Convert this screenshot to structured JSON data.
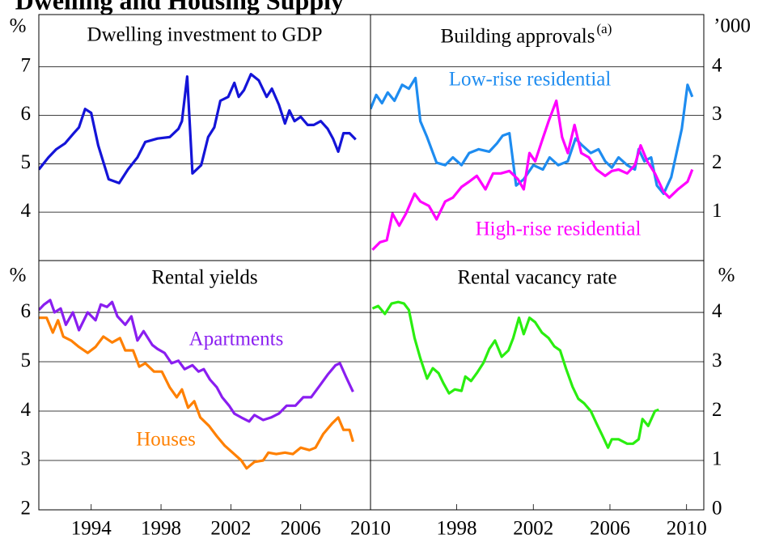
{
  "title": "Dwelling and Housing Supply",
  "chart_data": [
    {
      "type": "line",
      "title": "Dwelling investment to GDP",
      "y_label": "%",
      "xlim": [
        1991,
        2010
      ],
      "ylim": [
        3,
        8.08
      ],
      "yticks": [
        4,
        5,
        6,
        7
      ],
      "grid": true,
      "series": [
        {
          "name": null,
          "color": "#1414d8",
          "x": [
            1991,
            1991.55,
            1992,
            1992.5,
            1993,
            1993.3,
            1993.65,
            1994,
            1994.4,
            1995,
            1995.6,
            1996.1,
            1996.65,
            1997.1,
            1997.8,
            1998.5,
            1999,
            1999.2,
            1999.5,
            1999.8,
            2000.3,
            2000.7,
            2001.05,
            2001.4,
            2001.85,
            2002.2,
            2002.45,
            2002.75,
            2003.15,
            2003.6,
            2004.05,
            2004.35,
            2004.75,
            2005.1,
            2005.35,
            2005.65,
            2006,
            2006.4,
            2006.75,
            2007.15,
            2007.55,
            2007.85,
            2008.15,
            2008.45,
            2008.8,
            2009.15
          ],
          "values": [
            4.88,
            5.13,
            5.3,
            5.42,
            5.63,
            5.75,
            6.13,
            6.05,
            5.38,
            4.68,
            4.6,
            4.88,
            5.13,
            5.45,
            5.52,
            5.55,
            5.72,
            5.88,
            6.8,
            4.8,
            4.97,
            5.55,
            5.75,
            6.3,
            6.38,
            6.67,
            6.38,
            6.52,
            6.85,
            6.72,
            6.38,
            6.55,
            6.22,
            5.83,
            6.1,
            5.88,
            5.97,
            5.8,
            5.8,
            5.88,
            5.72,
            5.52,
            5.25,
            5.63,
            5.63,
            5.5
          ]
        }
      ]
    },
    {
      "type": "line",
      "title": "Building approvals",
      "title_note": "(a)",
      "y_label": "’000",
      "xlim": [
        1993.5,
        2010.9
      ],
      "ylim": [
        0,
        5.08
      ],
      "yticks": [
        1,
        2,
        3,
        4
      ],
      "grid": true,
      "series": [
        {
          "name": "Low-rise residential",
          "color": "#1e8cf0",
          "x": [
            1993.5,
            1993.8,
            1994.1,
            1994.4,
            1994.75,
            1995.15,
            1995.5,
            1995.85,
            1996.1,
            1996.45,
            1996.95,
            1997.4,
            1997.8,
            1998.25,
            1998.65,
            1999.15,
            1999.7,
            2000.1,
            2000.4,
            2000.75,
            2001.1,
            2001.5,
            2002,
            2002.5,
            2002.85,
            2003.3,
            2003.8,
            2004.2,
            2004.55,
            2005,
            2005.4,
            2005.75,
            2006.1,
            2006.45,
            2006.9,
            2007.3,
            2007.5,
            2007.8,
            2008.15,
            2008.45,
            2008.8,
            2009.2,
            2009.75,
            2010.05,
            2010.3
          ],
          "values": [
            3.13,
            3.42,
            3.25,
            3.47,
            3.3,
            3.63,
            3.55,
            3.77,
            2.88,
            2.55,
            2.02,
            1.97,
            2.13,
            1.97,
            2.22,
            2.3,
            2.25,
            2.42,
            2.58,
            2.63,
            1.55,
            1.68,
            1.97,
            1.88,
            2.13,
            1.97,
            2.05,
            2.52,
            2.38,
            2.22,
            2.3,
            2.05,
            1.92,
            2.13,
            1.97,
            1.88,
            2.3,
            2.05,
            2.13,
            1.55,
            1.38,
            1.72,
            2.72,
            3.63,
            3.38
          ]
        },
        {
          "name": "High-rise residential",
          "color": "#ff00ff",
          "x": [
            1993.6,
            1994,
            1994.35,
            1994.65,
            1995,
            1995.35,
            1995.8,
            1996.1,
            1996.55,
            1996.95,
            1997.4,
            1997.8,
            1998.25,
            1998.65,
            1999.05,
            1999.5,
            1999.9,
            2000.3,
            2000.75,
            2001.2,
            2001.5,
            2001.8,
            2002.1,
            2002.45,
            2002.8,
            2003.2,
            2003.5,
            2003.8,
            2004.15,
            2004.5,
            2004.9,
            2005.3,
            2005.75,
            2006.1,
            2006.45,
            2006.9,
            2007.3,
            2007.6,
            2007.95,
            2008.35,
            2008.8,
            2009.1,
            2009.55,
            2010.05,
            2010.3
          ],
          "values": [
            0.22,
            0.38,
            0.42,
            0.97,
            0.72,
            0.97,
            1.38,
            1.22,
            1.13,
            0.85,
            1.22,
            1.3,
            1.52,
            1.63,
            1.75,
            1.47,
            1.8,
            1.8,
            1.85,
            1.68,
            1.47,
            2.22,
            2.05,
            2.47,
            2.88,
            3.3,
            2.55,
            2.22,
            2.8,
            2.22,
            2.13,
            1.88,
            1.75,
            1.85,
            1.88,
            1.8,
            1.97,
            2.38,
            2.05,
            1.8,
            1.42,
            1.3,
            1.47,
            1.63,
            1.88
          ]
        }
      ]
    },
    {
      "type": "line",
      "title": "Rental yields",
      "y_label": "%",
      "xlim": [
        1991,
        2010
      ],
      "ylim": [
        2,
        7.05
      ],
      "yticks": [
        2,
        3,
        4,
        5,
        6
      ],
      "grid": true,
      "xticks": [
        1994,
        1998,
        2002,
        2006,
        2010
      ],
      "series": [
        {
          "name": "Apartments",
          "color": "#8a1ef0",
          "x": [
            1991,
            1991.3,
            1991.65,
            1991.9,
            1992.25,
            1992.55,
            1992.95,
            1993.3,
            1993.8,
            1994.25,
            1994.55,
            1994.9,
            1995.2,
            1995.5,
            1995.95,
            1996.3,
            1996.65,
            1997,
            1997.5,
            1997.8,
            1998.2,
            1998.6,
            1999,
            1999.35,
            1999.8,
            2000.15,
            2000.45,
            2000.8,
            2001.2,
            2001.5,
            2001.9,
            2002.2,
            2002.6,
            2003.05,
            2003.35,
            2003.85,
            2004.3,
            2004.75,
            2005.2,
            2005.7,
            2006.15,
            2006.6,
            2007.1,
            2007.55,
            2008,
            2008.25,
            2008.6,
            2009
          ],
          "values": [
            6.05,
            6.16,
            6.25,
            6.0,
            6.08,
            5.75,
            6.0,
            5.64,
            6.0,
            5.84,
            6.16,
            6.11,
            6.21,
            5.92,
            5.75,
            5.92,
            5.43,
            5.62,
            5.34,
            5.26,
            5.18,
            4.97,
            5.02,
            4.85,
            4.93,
            4.8,
            4.85,
            4.64,
            4.48,
            4.28,
            4.11,
            3.95,
            3.87,
            3.79,
            3.92,
            3.82,
            3.87,
            3.95,
            4.11,
            4.11,
            4.28,
            4.28,
            4.52,
            4.74,
            4.93,
            4.97,
            4.69,
            4.39
          ]
        },
        {
          "name": "Houses",
          "color": "#ff8000",
          "x": [
            1991,
            1991.45,
            1991.8,
            1992.1,
            1992.4,
            1992.85,
            1993.3,
            1993.8,
            1994.25,
            1994.7,
            1995.2,
            1995.65,
            1995.95,
            1996.4,
            1996.75,
            1997.1,
            1997.6,
            1998.05,
            1998.5,
            1998.9,
            1999.2,
            1999.55,
            1999.9,
            2000.25,
            2000.75,
            2001.2,
            2001.65,
            2002.1,
            2002.6,
            2002.9,
            2003.35,
            2003.85,
            2004.15,
            2004.6,
            2005.1,
            2005.55,
            2006,
            2006.5,
            2006.85,
            2007.3,
            2007.8,
            2008.15,
            2008.45,
            2008.8,
            2009
          ],
          "values": [
            5.89,
            5.89,
            5.59,
            5.84,
            5.51,
            5.43,
            5.3,
            5.18,
            5.3,
            5.51,
            5.39,
            5.48,
            5.23,
            5.23,
            4.9,
            4.97,
            4.8,
            4.8,
            4.48,
            4.28,
            4.44,
            4.07,
            4.2,
            3.87,
            3.7,
            3.49,
            3.3,
            3.16,
            3.0,
            2.84,
            2.97,
            3.0,
            3.16,
            3.13,
            3.16,
            3.13,
            3.26,
            3.21,
            3.26,
            3.54,
            3.75,
            3.87,
            3.62,
            3.62,
            3.38
          ]
        }
      ]
    },
    {
      "type": "line",
      "title": "Rental vacancy rate",
      "y_label": "%",
      "xlim": [
        1993.5,
        2010.9
      ],
      "ylim": [
        0,
        5.05
      ],
      "yticks": [
        0,
        1,
        2,
        3,
        4
      ],
      "grid": true,
      "xticks": [
        1998,
        2002,
        2006,
        2010
      ],
      "series": [
        {
          "name": null,
          "color": "#2aee10",
          "x": [
            1993.6,
            1993.9,
            1994.25,
            1994.6,
            1994.95,
            1995.25,
            1995.5,
            1995.8,
            1996.1,
            1996.45,
            1996.75,
            1997.05,
            1997.3,
            1997.6,
            1997.9,
            1998.25,
            1998.45,
            1998.75,
            1999.05,
            1999.4,
            1999.7,
            2000,
            2000.35,
            2000.7,
            2000.95,
            2001.25,
            2001.5,
            2001.8,
            2002.1,
            2002.45,
            2002.8,
            2003.1,
            2003.4,
            2003.7,
            2004.05,
            2004.35,
            2004.65,
            2005,
            2005.3,
            2005.6,
            2005.9,
            2006.1,
            2006.45,
            2006.9,
            2007.2,
            2007.5,
            2007.7,
            2008,
            2008.35,
            2008.55
          ],
          "values": [
            4.08,
            4.13,
            3.97,
            4.18,
            4.21,
            4.18,
            4.05,
            3.48,
            3.07,
            2.66,
            2.87,
            2.77,
            2.57,
            2.36,
            2.44,
            2.41,
            2.7,
            2.61,
            2.77,
            2.98,
            3.26,
            3.43,
            3.1,
            3.23,
            3.48,
            3.89,
            3.56,
            3.89,
            3.8,
            3.59,
            3.48,
            3.31,
            3.23,
            2.87,
            2.49,
            2.25,
            2.16,
            2.0,
            1.75,
            1.51,
            1.26,
            1.43,
            1.43,
            1.34,
            1.34,
            1.43,
            1.84,
            1.7,
            2.0,
            2.03
          ]
        }
      ]
    }
  ]
}
